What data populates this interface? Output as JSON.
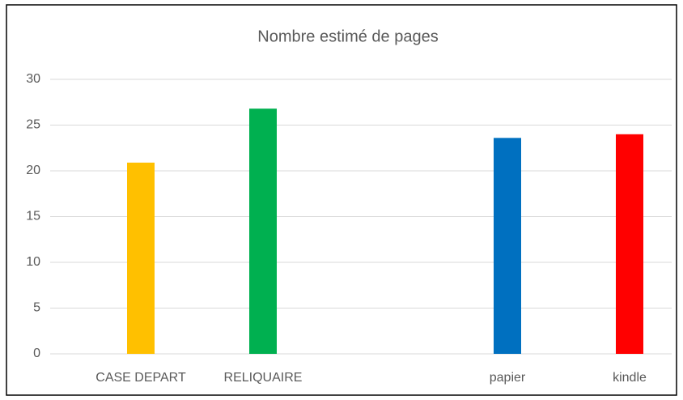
{
  "chart_data": {
    "type": "bar",
    "title": "Nombre estimé de pages",
    "categories": [
      "CASE DEPART",
      "RELIQUAIRE",
      null,
      "papier",
      "kindle"
    ],
    "values": [
      20.9,
      26.8,
      null,
      23.6,
      24.0
    ],
    "colors": [
      "#ffc000",
      "#00b050",
      null,
      "#0070c0",
      "#ff0000"
    ],
    "ylim": [
      0,
      30
    ],
    "yticks": [
      0,
      5,
      10,
      15,
      20,
      25,
      30
    ],
    "grid": true
  }
}
